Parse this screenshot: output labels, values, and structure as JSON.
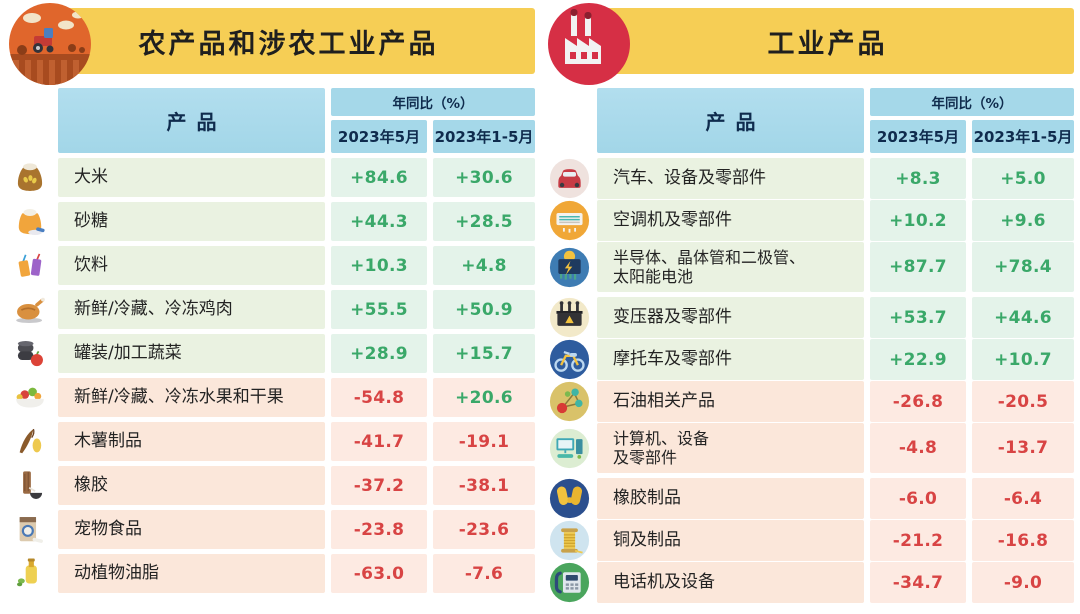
{
  "colors": {
    "banner_bg": "#f6ce55",
    "header_bg": "#a5d8e9",
    "header_text": "#0f2b4d",
    "positive_text": "#3aa869",
    "negative_text": "#d84444",
    "positive_row_bg": "#eaf2e1",
    "positive_value_bg": "#e4f3ea",
    "negative_row_bg": "#fbe7da",
    "negative_value_bg": "#fdeae2",
    "farm_badge_bg": "#e0662c",
    "factory_badge_bg": "#d62f45"
  },
  "panels": [
    {
      "title": "农产品和涉农工业产品",
      "badge_icon": "farm-icon",
      "header": {
        "product": "产品",
        "yoy": "年同比（%）",
        "col_may": "2023年5月",
        "col_jan_may": "2023年1-5月"
      },
      "rows": [
        {
          "icon": "rice-sack-icon",
          "label": "大米",
          "may": "+84.6",
          "jan_may": "+30.6"
        },
        {
          "icon": "sugar-sack-icon",
          "label": "砂糖",
          "may": "+44.3",
          "jan_may": "+28.5"
        },
        {
          "icon": "beverage-icon",
          "label": "饮料",
          "may": "+10.3",
          "jan_may": "+4.8"
        },
        {
          "icon": "chicken-icon",
          "label": "新鲜/冷藏、冷冻鸡肉",
          "may": "+55.5",
          "jan_may": "+50.9"
        },
        {
          "icon": "canned-vegetables-icon",
          "label": "罐装/加工蔬菜",
          "may": "+28.9",
          "jan_may": "+15.7"
        },
        {
          "icon": "fruit-basket-icon",
          "label": "新鲜/冷藏、冷冻水果和干果",
          "may": "-54.8",
          "jan_may": "+20.6"
        },
        {
          "icon": "cassava-icon",
          "label": "木薯制品",
          "may": "-41.7",
          "jan_may": "-19.1"
        },
        {
          "icon": "rubber-tree-icon",
          "label": "橡胶",
          "may": "-37.2",
          "jan_may": "-38.1"
        },
        {
          "icon": "pet-food-icon",
          "label": "宠物食品",
          "may": "-23.8",
          "jan_may": "-23.6"
        },
        {
          "icon": "oil-bottle-icon",
          "label": "动植物油脂",
          "may": "-63.0",
          "jan_may": "-7.6"
        }
      ]
    },
    {
      "title": "工业产品",
      "badge_icon": "factory-icon",
      "header": {
        "product": "产品",
        "yoy": "年同比（%）",
        "col_may": "2023年5月",
        "col_jan_may": "2023年1-5月"
      },
      "rows": [
        {
          "icon": "car-icon",
          "label": "汽车、设备及零部件",
          "may": "+8.3",
          "jan_may": "+5.0"
        },
        {
          "icon": "air-conditioner-icon",
          "label": "空调机及零部件",
          "may": "+10.2",
          "jan_may": "+9.6"
        },
        {
          "icon": "semiconductor-icon",
          "lines": [
            "半导体、晶体管和二极管、",
            "太阳能电池"
          ],
          "may": "+87.7",
          "jan_may": "+78.4",
          "tall": true
        },
        {
          "icon": "transformer-icon",
          "label": "变压器及零部件",
          "may": "+53.7",
          "jan_may": "+44.6"
        },
        {
          "icon": "motorcycle-icon",
          "label": "摩托车及零部件",
          "may": "+22.9",
          "jan_may": "+10.7"
        },
        {
          "icon": "petroleum-icon",
          "label": "石油相关产品",
          "may": "-26.8",
          "jan_may": "-20.5"
        },
        {
          "icon": "computer-icon",
          "lines": [
            "计算机、设备",
            "及零部件"
          ],
          "may": "-4.8",
          "jan_may": "-13.7",
          "tall": true
        },
        {
          "icon": "rubber-gloves-icon",
          "label": "橡胶制品",
          "may": "-6.0",
          "jan_may": "-6.4"
        },
        {
          "icon": "copper-icon",
          "label": "铜及制品",
          "may": "-21.2",
          "jan_may": "-16.8"
        },
        {
          "icon": "telephone-icon",
          "label": "电话机及设备",
          "may": "-34.7",
          "jan_may": "-9.0"
        }
      ]
    }
  ]
}
